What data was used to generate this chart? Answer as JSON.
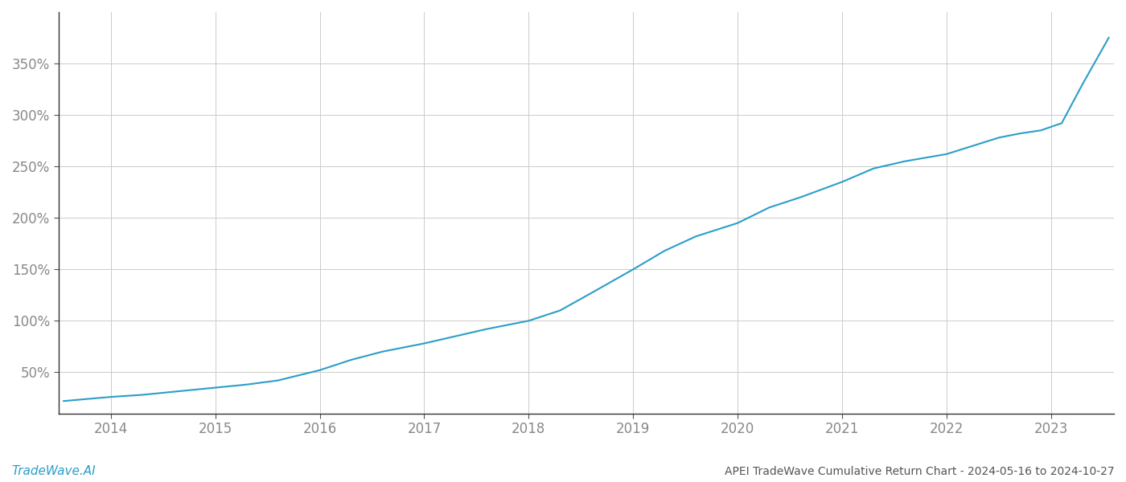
{
  "title": "APEI TradeWave Cumulative Return Chart - 2024-05-16 to 2024-10-27",
  "watermark": "TradeWave.AI",
  "line_color": "#2b9ec8",
  "background_color": "#ffffff",
  "grid_color": "#cccccc",
  "x_tick_color": "#888888",
  "y_tick_color": "#888888",
  "x_ticks": [
    2014,
    2015,
    2016,
    2017,
    2018,
    2019,
    2020,
    2021,
    2022,
    2023
  ],
  "y_ticks": [
    50,
    100,
    150,
    200,
    250,
    300,
    350
  ],
  "xlim": [
    2013.5,
    2023.6
  ],
  "ylim": [
    10,
    400
  ],
  "data_x": [
    2013.55,
    2014.0,
    2014.3,
    2014.7,
    2015.0,
    2015.3,
    2015.6,
    2016.0,
    2016.3,
    2016.6,
    2017.0,
    2017.3,
    2017.6,
    2018.0,
    2018.3,
    2018.6,
    2019.0,
    2019.3,
    2019.6,
    2020.0,
    2020.3,
    2020.6,
    2021.0,
    2021.3,
    2021.6,
    2022.0,
    2022.25,
    2022.5,
    2022.7,
    2022.9,
    2023.1,
    2023.3,
    2023.55
  ],
  "data_y": [
    22,
    26,
    28,
    32,
    35,
    38,
    42,
    52,
    62,
    70,
    78,
    85,
    92,
    100,
    110,
    127,
    150,
    168,
    182,
    195,
    210,
    220,
    235,
    248,
    255,
    262,
    270,
    278,
    282,
    285,
    292,
    330,
    375
  ],
  "line_width": 1.5,
  "title_fontsize": 10,
  "tick_fontsize": 12,
  "watermark_fontsize": 11
}
